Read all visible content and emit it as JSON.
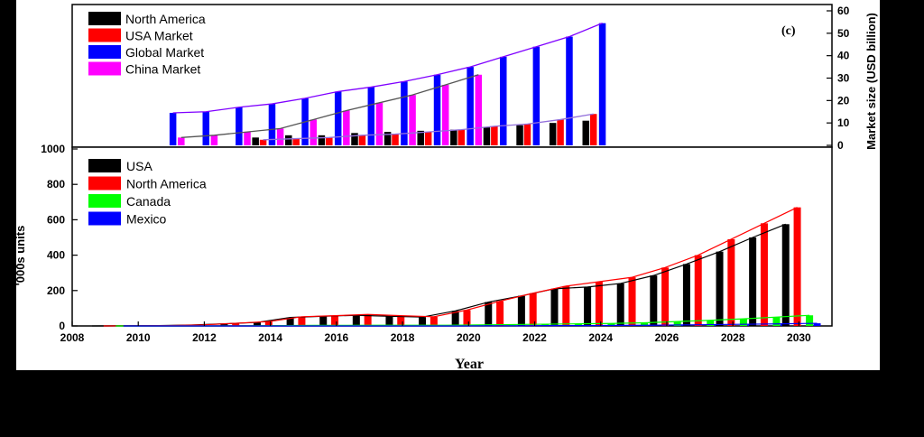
{
  "chart_data": [
    {
      "type": "bar",
      "panel_label": "(c)",
      "ylabel": "Market size (USD billion)",
      "ylim": [
        0,
        60
      ],
      "yticks": [
        0,
        10,
        20,
        30,
        40,
        50,
        60
      ],
      "y_axis_side": "right",
      "legend_position": "top-left",
      "x": [
        2011,
        2012,
        2013,
        2014,
        2015,
        2016,
        2017,
        2018,
        2019,
        2020,
        2021,
        2022,
        2023,
        2024
      ],
      "series": [
        {
          "name": "North America",
          "color": "#000000",
          "values": [
            null,
            null,
            null,
            3.5,
            4.5,
            4.5,
            5.5,
            6,
            6.5,
            7,
            8,
            9,
            10,
            11
          ]
        },
        {
          "name": "USA Market",
          "color": "#ff0000",
          "values": [
            null,
            null,
            null,
            2.5,
            3,
            3.5,
            4.5,
            5,
            6,
            7,
            8.5,
            9.5,
            11.5,
            14
          ]
        },
        {
          "name": "Global Market",
          "color": "#0000ff",
          "values": [
            14.5,
            15,
            17,
            18.5,
            21,
            24,
            26,
            28.5,
            31.5,
            35,
            39.5,
            44,
            48.5,
            54.5
          ]
        },
        {
          "name": "China Market",
          "color": "#ff00ff",
          "values": [
            3.5,
            4.5,
            6,
            7.5,
            11.5,
            15.5,
            19,
            22.5,
            27,
            31.5,
            null,
            null,
            null,
            null
          ]
        }
      ],
      "trendlines": [
        {
          "series": "Global Market",
          "color": "#7f00ff"
        },
        {
          "series": "China Market",
          "color": "#555555"
        },
        {
          "series": "USA Market",
          "color": "#9370db"
        }
      ]
    },
    {
      "type": "bar",
      "xlabel": "Year",
      "ylabel": "'000s units",
      "ylim": [
        0,
        1000
      ],
      "yticks": [
        0,
        200,
        400,
        600,
        800,
        1000
      ],
      "xlim": [
        2008,
        2031
      ],
      "xticks": [
        2008,
        2010,
        2012,
        2014,
        2016,
        2018,
        2020,
        2022,
        2024,
        2026,
        2028,
        2030
      ],
      "legend_position": "top-left",
      "x": [
        2009,
        2010,
        2011,
        2012,
        2013,
        2014,
        2015,
        2016,
        2017,
        2018,
        2019,
        2020,
        2021,
        2022,
        2023,
        2024,
        2025,
        2026,
        2027,
        2028,
        2029,
        2030
      ],
      "series": [
        {
          "name": "USA",
          "color": "#000000",
          "values": [
            0,
            1,
            2,
            5,
            12,
            20,
            48,
            55,
            60,
            55,
            50,
            85,
            135,
            170,
            210,
            220,
            240,
            285,
            350,
            420,
            500,
            575
          ]
        },
        {
          "name": "North America",
          "color": "#ff0000",
          "values": [
            0,
            1,
            2,
            6,
            15,
            25,
            52,
            58,
            65,
            58,
            52,
            90,
            140,
            185,
            225,
            250,
            275,
            330,
            400,
            490,
            580,
            670
          ]
        },
        {
          "name": "Canada",
          "color": "#00ff00",
          "values": [
            0,
            0,
            0,
            0,
            1,
            2,
            3,
            3,
            4,
            4,
            4,
            6,
            8,
            10,
            12,
            14,
            18,
            25,
            32,
            40,
            50,
            60
          ]
        },
        {
          "name": "Mexico",
          "color": "#0000ff",
          "values": [
            0,
            0,
            0,
            0,
            0,
            0,
            0,
            0,
            0,
            0,
            0,
            1,
            1,
            2,
            2,
            3,
            4,
            6,
            8,
            10,
            12,
            15
          ]
        }
      ]
    }
  ]
}
